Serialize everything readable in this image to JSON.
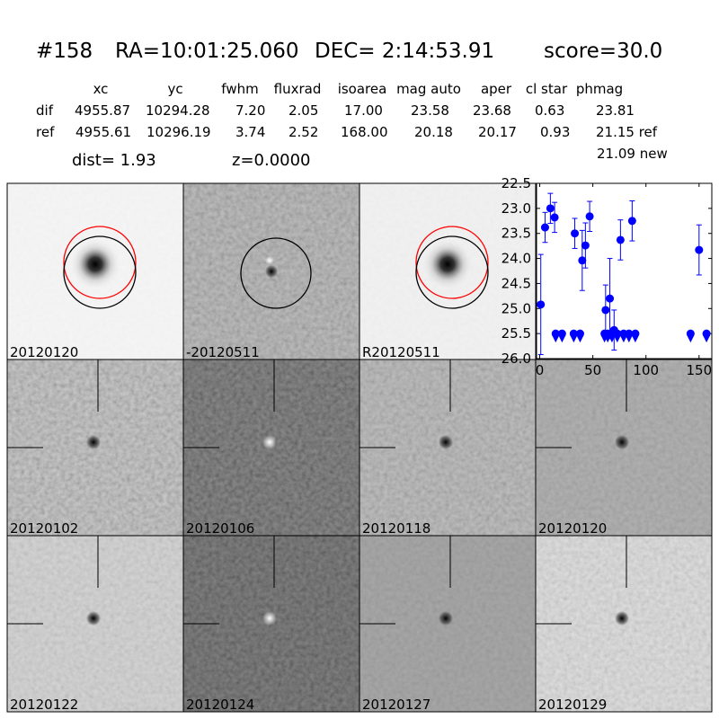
{
  "header": {
    "id": "#158",
    "ra": "RA=10:01:25.060",
    "dec": "DEC= 2:14:53.91",
    "score": "score=30.0"
  },
  "table": {
    "columns": [
      "xc",
      "yc",
      "fwhm",
      "fluxrad",
      "isoarea",
      "mag auto",
      "aper",
      "cl star",
      "phmag"
    ],
    "rows": [
      [
        "dif",
        "4955.87",
        "10294.28",
        "7.20",
        "2.05",
        "17.00",
        "23.58",
        "23.68",
        "0.63",
        "23.81"
      ],
      [
        "ref",
        "4955.61",
        "10296.19",
        "3.74",
        "2.52",
        "168.00",
        "20.18",
        "20.17",
        "0.93",
        "21.15 ref"
      ]
    ],
    "extra": "21.09 new"
  },
  "dist": "dist=  1.93",
  "z": "z=0.0000",
  "stamps": [
    {
      "label": "20120120"
    },
    {
      "label": "-20120511"
    },
    {
      "label": "R20120511"
    },
    {
      "label": "20120102"
    },
    {
      "label": "20120106"
    },
    {
      "label": "20120118"
    },
    {
      "label": "20120120",
      "color": "#ff0000"
    },
    {
      "label": "20120122"
    },
    {
      "label": "20120124"
    },
    {
      "label": "20120127"
    },
    {
      "label": "20120129"
    }
  ],
  "chart_data": {
    "type": "scatter",
    "xlim": [
      -3,
      162
    ],
    "xticks": [
      0,
      50,
      100,
      150
    ],
    "ylim": [
      26.0,
      22.5
    ],
    "yticks": [
      {
        "value": 22.5,
        "label": "22.5"
      },
      {
        "value": 23.0,
        "label": "23.0"
      },
      {
        "value": 23.5,
        "label": "23.5"
      },
      {
        "value": 24.0,
        "label": "24.0"
      },
      {
        "value": 24.5,
        "label": "24.5"
      },
      {
        "value": 25.0,
        "label": "25.0"
      },
      {
        "value": 25.5,
        "label": "25.5"
      },
      {
        "value": 26.0,
        "label": "26.0"
      }
    ],
    "series": [
      {
        "color": "#0000ff",
        "marker": "circle",
        "x": [
          1,
          5,
          10,
          14,
          33,
          40,
          43,
          47,
          62,
          66,
          70,
          76,
          87,
          150
        ],
        "values": [
          24.92,
          23.38,
          23.0,
          23.18,
          23.5,
          24.04,
          23.74,
          23.16,
          25.03,
          24.8,
          25.43,
          23.63,
          23.25,
          23.83
        ],
        "errors": [
          1.0,
          0.3,
          0.3,
          0.3,
          0.3,
          0.6,
          0.45,
          0.3,
          0.5,
          0.8,
          0.4,
          0.4,
          0.4,
          0.5
        ]
      },
      {
        "color": "#0000ff",
        "marker": "limit",
        "x": [
          15,
          21,
          32,
          38,
          61,
          64,
          68,
          73,
          79,
          84,
          90,
          142,
          157
        ],
        "values": [
          25.5,
          25.5,
          25.5,
          25.5,
          25.5,
          25.5,
          25.5,
          25.5,
          25.5,
          25.5,
          25.5,
          25.5,
          25.5
        ]
      }
    ]
  }
}
